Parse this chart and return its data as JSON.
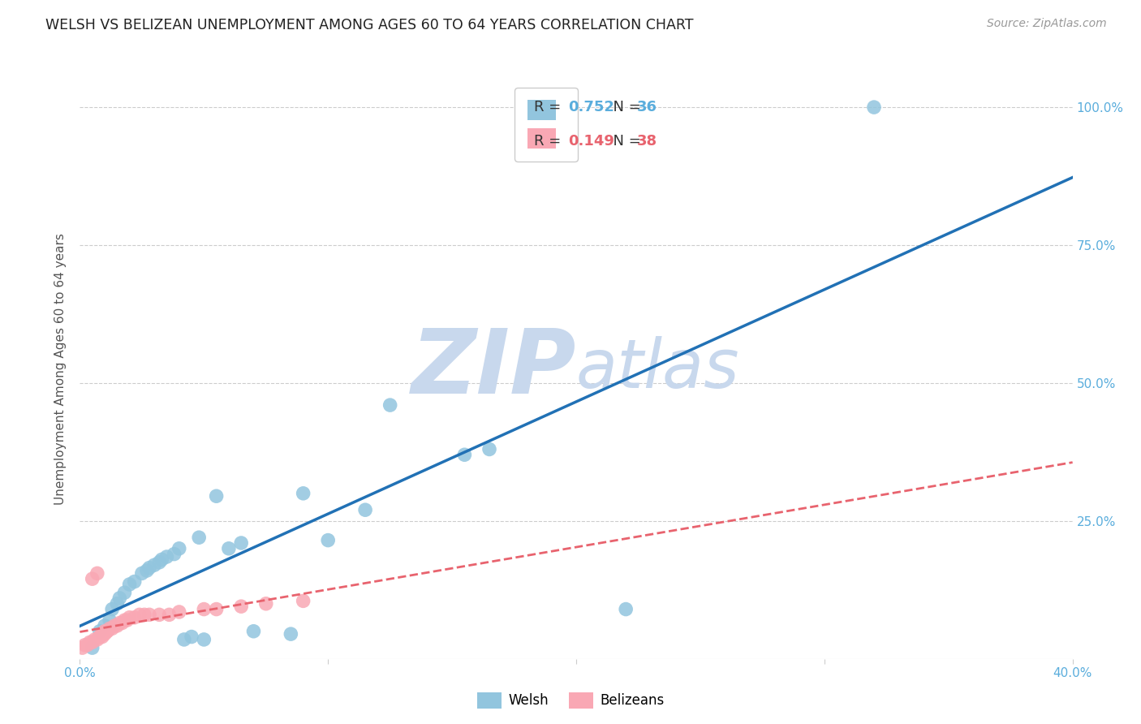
{
  "title": "WELSH VS BELIZEAN UNEMPLOYMENT AMONG AGES 60 TO 64 YEARS CORRELATION CHART",
  "source": "Source: ZipAtlas.com",
  "ylabel": "Unemployment Among Ages 60 to 64 years",
  "xlim": [
    0.0,
    0.4
  ],
  "ylim": [
    0.0,
    1.05
  ],
  "xticks": [
    0.0,
    0.1,
    0.2,
    0.3,
    0.4
  ],
  "yticks": [
    0.25,
    0.5,
    0.75,
    1.0
  ],
  "xticklabels": [
    "0.0%",
    "",
    "",
    "",
    "40.0%"
  ],
  "yticklabels_right": [
    "25.0%",
    "50.0%",
    "75.0%",
    "100.0%"
  ],
  "welsh_R": 0.752,
  "welsh_N": 36,
  "belizean_R": 0.149,
  "belizean_N": 38,
  "welsh_color": "#92C5DE",
  "belizean_color": "#F9A8B4",
  "welsh_line_color": "#2171B5",
  "belizean_line_color": "#E8636E",
  "tick_color": "#5AADDC",
  "watermark_color": "#C8D8ED",
  "welsh_x": [
    0.005,
    0.008,
    0.01,
    0.012,
    0.013,
    0.015,
    0.016,
    0.018,
    0.02,
    0.022,
    0.025,
    0.027,
    0.028,
    0.03,
    0.032,
    0.033,
    0.035,
    0.038,
    0.04,
    0.042,
    0.045,
    0.048,
    0.05,
    0.055,
    0.06,
    0.065,
    0.07,
    0.085,
    0.09,
    0.1,
    0.115,
    0.125,
    0.155,
    0.165,
    0.22,
    0.32
  ],
  "welsh_y": [
    0.02,
    0.05,
    0.06,
    0.07,
    0.09,
    0.1,
    0.11,
    0.12,
    0.135,
    0.14,
    0.155,
    0.16,
    0.165,
    0.17,
    0.175,
    0.18,
    0.185,
    0.19,
    0.2,
    0.035,
    0.04,
    0.22,
    0.035,
    0.295,
    0.2,
    0.21,
    0.05,
    0.045,
    0.3,
    0.215,
    0.27,
    0.46,
    0.37,
    0.38,
    0.09,
    1.0
  ],
  "belizean_x": [
    0.001,
    0.002,
    0.003,
    0.004,
    0.005,
    0.005,
    0.006,
    0.007,
    0.007,
    0.008,
    0.008,
    0.009,
    0.009,
    0.01,
    0.01,
    0.011,
    0.011,
    0.012,
    0.013,
    0.014,
    0.015,
    0.016,
    0.017,
    0.018,
    0.019,
    0.02,
    0.022,
    0.024,
    0.026,
    0.028,
    0.032,
    0.036,
    0.04,
    0.05,
    0.055,
    0.065,
    0.075,
    0.09
  ],
  "belizean_y": [
    0.02,
    0.025,
    0.025,
    0.03,
    0.03,
    0.145,
    0.035,
    0.035,
    0.155,
    0.04,
    0.04,
    0.04,
    0.045,
    0.045,
    0.05,
    0.05,
    0.05,
    0.055,
    0.055,
    0.06,
    0.06,
    0.065,
    0.065,
    0.07,
    0.07,
    0.075,
    0.075,
    0.08,
    0.08,
    0.08,
    0.08,
    0.08,
    0.085,
    0.09,
    0.09,
    0.095,
    0.1,
    0.105
  ]
}
